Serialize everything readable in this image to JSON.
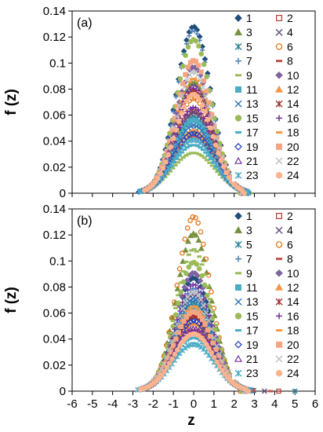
{
  "chart_data": [
    {
      "type": "scatter",
      "panel_label": "(a)",
      "xlabel": "",
      "ylabel": "f (z)",
      "xlim": [
        -6,
        6
      ],
      "ylim": [
        0,
        0.14
      ],
      "x_ticks": [],
      "y_ticks": [
        "0",
        "0.02",
        "0.04",
        "0.06",
        "0.08",
        "0.1",
        "0.12",
        "0.14"
      ],
      "grid": false,
      "legend_position": "right",
      "legend": [
        "1",
        "2",
        "3",
        "4",
        "5",
        "6",
        "7",
        "8",
        "9",
        "10",
        "11",
        "12",
        "13",
        "14",
        "15",
        "16",
        "17",
        "18",
        "19",
        "20",
        "21",
        "22",
        "23",
        "24"
      ],
      "series": [
        {
          "name": "1",
          "peak": 0.128,
          "sigma": 0.85,
          "xmin": -2.3,
          "xmax": 2.3
        },
        {
          "name": "2",
          "peak": 0.063,
          "sigma": 0.95,
          "xmin": -2.6,
          "xmax": 2.6
        },
        {
          "name": "3",
          "peak": 0.085,
          "sigma": 0.9,
          "xmin": -2.5,
          "xmax": 2.4
        },
        {
          "name": "4",
          "peak": 0.062,
          "sigma": 0.95,
          "xmin": -2.6,
          "xmax": 2.6
        },
        {
          "name": "5",
          "peak": 0.058,
          "sigma": 0.95,
          "xmin": -2.6,
          "xmax": 2.6
        },
        {
          "name": "6",
          "peak": 0.073,
          "sigma": 0.92,
          "xmin": -2.5,
          "xmax": 2.5
        },
        {
          "name": "7",
          "peak": 0.125,
          "sigma": 0.85,
          "xmin": -2.3,
          "xmax": 2.3
        },
        {
          "name": "8",
          "peak": 0.044,
          "sigma": 1.0,
          "xmin": -2.7,
          "xmax": 2.7
        },
        {
          "name": "9",
          "peak": 0.031,
          "sigma": 1.05,
          "xmin": -2.8,
          "xmax": 2.8
        },
        {
          "name": "10",
          "peak": 0.097,
          "sigma": 0.88,
          "xmin": -2.4,
          "xmax": 2.4
        },
        {
          "name": "11",
          "peak": 0.056,
          "sigma": 0.95,
          "xmin": -2.6,
          "xmax": 2.6
        },
        {
          "name": "12",
          "peak": 0.048,
          "sigma": 0.98,
          "xmin": -2.6,
          "xmax": 2.6
        },
        {
          "name": "13",
          "peak": 0.052,
          "sigma": 0.97,
          "xmin": -2.6,
          "xmax": 2.6
        },
        {
          "name": "14",
          "peak": 0.079,
          "sigma": 0.9,
          "xmin": -2.5,
          "xmax": 2.5
        },
        {
          "name": "15",
          "peak": 0.118,
          "sigma": 0.86,
          "xmin": -2.3,
          "xmax": 2.3
        },
        {
          "name": "16",
          "peak": 0.066,
          "sigma": 0.93,
          "xmin": -2.5,
          "xmax": 2.5
        },
        {
          "name": "17",
          "peak": 0.037,
          "sigma": 1.02,
          "xmin": -2.7,
          "xmax": 2.7
        },
        {
          "name": "18",
          "peak": 0.088,
          "sigma": 0.9,
          "xmin": -2.5,
          "xmax": 2.5
        },
        {
          "name": "19",
          "peak": 0.046,
          "sigma": 0.98,
          "xmin": -2.7,
          "xmax": 2.7
        },
        {
          "name": "20",
          "peak": 0.102,
          "sigma": 0.87,
          "xmin": -2.4,
          "xmax": 2.4
        },
        {
          "name": "21",
          "peak": 0.082,
          "sigma": 0.9,
          "xmin": -2.5,
          "xmax": 2.5
        },
        {
          "name": "22",
          "peak": 0.093,
          "sigma": 0.88,
          "xmin": -2.4,
          "xmax": 2.4
        },
        {
          "name": "23",
          "peak": 0.041,
          "sigma": 1.0,
          "xmin": -2.7,
          "xmax": 2.7
        },
        {
          "name": "24",
          "peak": 0.076,
          "sigma": 0.91,
          "xmin": -2.5,
          "xmax": 2.5
        }
      ]
    },
    {
      "type": "scatter",
      "panel_label": "(b)",
      "xlabel": "z",
      "ylabel": "f (z)",
      "xlim": [
        -6,
        6
      ],
      "ylim": [
        0,
        0.14
      ],
      "x_ticks": [
        "-6",
        "-5",
        "-4",
        "-3",
        "-2",
        "-1",
        "0",
        "1",
        "2",
        "3",
        "4",
        "5",
        "6"
      ],
      "y_ticks": [
        "0",
        "0.02",
        "0.04",
        "0.06",
        "0.08",
        "0.1",
        "0.12",
        "0.14"
      ],
      "grid": false,
      "legend_position": "right",
      "legend": [
        "1",
        "2",
        "3",
        "4",
        "5",
        "6",
        "7",
        "8",
        "9",
        "10",
        "11",
        "12",
        "13",
        "14",
        "15",
        "16",
        "17",
        "18",
        "19",
        "20",
        "21",
        "22",
        "23",
        "24"
      ],
      "series": [
        {
          "name": "1",
          "peak": 0.087,
          "sigma": 0.9,
          "xmin": -2.5,
          "xmax": 2.5
        },
        {
          "name": "2",
          "peak": 0.059,
          "sigma": 0.95,
          "xmin": -2.6,
          "xmax": 4.2
        },
        {
          "name": "3",
          "peak": 0.121,
          "sigma": 0.85,
          "xmin": -2.3,
          "xmax": 2.4
        },
        {
          "name": "4",
          "peak": 0.074,
          "sigma": 0.92,
          "xmin": -2.5,
          "xmax": 3.5
        },
        {
          "name": "5",
          "peak": 0.068,
          "sigma": 0.93,
          "xmin": -2.5,
          "xmax": 5.0
        },
        {
          "name": "6",
          "peak": 0.134,
          "sigma": 0.82,
          "xmin": -2.2,
          "xmax": 2.3
        },
        {
          "name": "7",
          "peak": 0.079,
          "sigma": 0.9,
          "xmin": -2.5,
          "xmax": 2.5
        },
        {
          "name": "8",
          "peak": 0.047,
          "sigma": 0.98,
          "xmin": -2.7,
          "xmax": 3.8
        },
        {
          "name": "9",
          "peak": 0.109,
          "sigma": 0.86,
          "xmin": -2.4,
          "xmax": 2.4
        },
        {
          "name": "10",
          "peak": 0.091,
          "sigma": 0.88,
          "xmin": -2.4,
          "xmax": 2.4
        },
        {
          "name": "11",
          "peak": 0.063,
          "sigma": 0.94,
          "xmin": -2.6,
          "xmax": 2.6
        },
        {
          "name": "12",
          "peak": 0.052,
          "sigma": 0.97,
          "xmin": -2.6,
          "xmax": 2.6
        },
        {
          "name": "13",
          "peak": 0.071,
          "sigma": 0.92,
          "xmin": -2.5,
          "xmax": 2.5
        },
        {
          "name": "14",
          "peak": 0.057,
          "sigma": 0.95,
          "xmin": -2.6,
          "xmax": 2.6
        },
        {
          "name": "15",
          "peak": 0.099,
          "sigma": 0.87,
          "xmin": -2.4,
          "xmax": 2.4
        },
        {
          "name": "16",
          "peak": 0.082,
          "sigma": 0.9,
          "xmin": -2.5,
          "xmax": 2.5
        },
        {
          "name": "17",
          "peak": 0.041,
          "sigma": 1.0,
          "xmin": -2.7,
          "xmax": 2.7
        },
        {
          "name": "18",
          "peak": 0.065,
          "sigma": 0.94,
          "xmin": -2.6,
          "xmax": 2.6
        },
        {
          "name": "19",
          "peak": 0.054,
          "sigma": 0.96,
          "xmin": -2.6,
          "xmax": 2.6
        },
        {
          "name": "20",
          "peak": 0.061,
          "sigma": 0.95,
          "xmin": -2.6,
          "xmax": 2.6
        },
        {
          "name": "21",
          "peak": 0.048,
          "sigma": 0.98,
          "xmin": -2.7,
          "xmax": 2.7
        },
        {
          "name": "22",
          "peak": 0.076,
          "sigma": 0.91,
          "xmin": -2.5,
          "xmax": 2.5
        },
        {
          "name": "23",
          "peak": 0.036,
          "sigma": 1.03,
          "xmin": -2.8,
          "xmax": 2.8
        },
        {
          "name": "24",
          "peak": 0.044,
          "sigma": 0.99,
          "xmin": -2.7,
          "xmax": 2.7
        }
      ]
    }
  ],
  "legend_styles": [
    {
      "name": "1",
      "marker": "diamond",
      "fill": true,
      "color": "#1f4e79"
    },
    {
      "name": "2",
      "marker": "square",
      "fill": false,
      "color": "#c0392b"
    },
    {
      "name": "3",
      "marker": "triangle",
      "fill": true,
      "color": "#76923c"
    },
    {
      "name": "4",
      "marker": "x",
      "fill": false,
      "color": "#604a7b"
    },
    {
      "name": "5",
      "marker": "star",
      "fill": false,
      "color": "#31859c"
    },
    {
      "name": "6",
      "marker": "circle",
      "fill": false,
      "color": "#e36c09"
    },
    {
      "name": "7",
      "marker": "plus",
      "fill": false,
      "color": "#4f81bd"
    },
    {
      "name": "8",
      "marker": "dash",
      "fill": true,
      "color": "#c0504d"
    },
    {
      "name": "9",
      "marker": "dash",
      "fill": true,
      "color": "#9bbb59"
    },
    {
      "name": "10",
      "marker": "diamond",
      "fill": true,
      "color": "#8064a2"
    },
    {
      "name": "11",
      "marker": "square",
      "fill": true,
      "color": "#4bacc6"
    },
    {
      "name": "12",
      "marker": "triangle",
      "fill": true,
      "color": "#f79646"
    },
    {
      "name": "13",
      "marker": "x",
      "fill": false,
      "color": "#2e75b6"
    },
    {
      "name": "14",
      "marker": "star",
      "fill": false,
      "color": "#a5302d"
    },
    {
      "name": "15",
      "marker": "circle",
      "fill": true,
      "color": "#9bbb59"
    },
    {
      "name": "16",
      "marker": "plus",
      "fill": false,
      "color": "#7030a0"
    },
    {
      "name": "17",
      "marker": "dash",
      "fill": true,
      "color": "#4bacc6"
    },
    {
      "name": "18",
      "marker": "dash",
      "fill": true,
      "color": "#f79646"
    },
    {
      "name": "19",
      "marker": "diamond",
      "fill": false,
      "color": "#1f3fbf"
    },
    {
      "name": "20",
      "marker": "square",
      "fill": true,
      "color": "#f4a582"
    },
    {
      "name": "21",
      "marker": "triangle",
      "fill": false,
      "color": "#7030a0"
    },
    {
      "name": "22",
      "marker": "x",
      "fill": false,
      "color": "#bfbfbf"
    },
    {
      "name": "23",
      "marker": "star",
      "fill": false,
      "color": "#4bacc6"
    },
    {
      "name": "24",
      "marker": "circle",
      "fill": true,
      "color": "#fab38c"
    }
  ]
}
